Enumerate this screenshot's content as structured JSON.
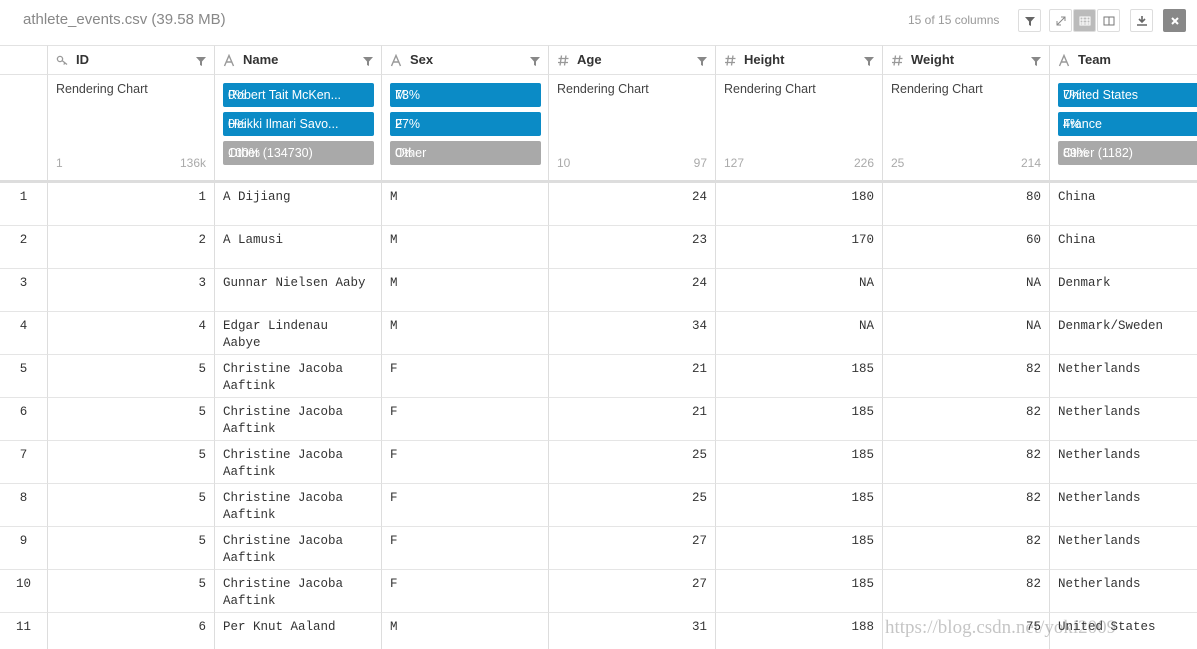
{
  "header": {
    "title": "athlete_events.csv (39.58 MB)",
    "columns_count": "15 of 15 columns"
  },
  "columns": [
    {
      "name": "ID",
      "icon": "key",
      "summary": {
        "chart": "Rendering Chart",
        "min": "1",
        "max": "136k"
      }
    },
    {
      "name": "Name",
      "icon": "text",
      "summary": {
        "top": [
          {
            "label": "Robert Tait McKen...",
            "pct": "0%"
          },
          {
            "label": "Heikki Ilmari Savo...",
            "pct": "0%"
          },
          {
            "label": "Other (134730)",
            "pct": "100%"
          }
        ]
      }
    },
    {
      "name": "Sex",
      "icon": "text",
      "summary": {
        "top": [
          {
            "label": "M",
            "pct": "73%"
          },
          {
            "label": "F",
            "pct": "27%"
          },
          {
            "label": "Other",
            "pct": "0%"
          }
        ]
      }
    },
    {
      "name": "Age",
      "icon": "number",
      "summary": {
        "chart": "Rendering Chart",
        "min": "10",
        "max": "97"
      }
    },
    {
      "name": "Height",
      "icon": "number",
      "summary": {
        "chart": "Rendering Chart",
        "min": "127",
        "max": "226"
      }
    },
    {
      "name": "Weight",
      "icon": "number",
      "summary": {
        "chart": "Rendering Chart",
        "min": "25",
        "max": "214"
      }
    },
    {
      "name": "Team",
      "icon": "text",
      "summary": {
        "top": [
          {
            "label": "United States",
            "pct": "7%"
          },
          {
            "label": "France",
            "pct": "4%"
          },
          {
            "label": "Other (1182)",
            "pct": "89%"
          }
        ]
      }
    }
  ],
  "rows": [
    [
      "1",
      "1",
      "A Dijiang",
      "M",
      "24",
      "180",
      "80",
      "China"
    ],
    [
      "2",
      "2",
      "A Lamusi",
      "M",
      "23",
      "170",
      "60",
      "China"
    ],
    [
      "3",
      "3",
      "Gunnar Nielsen Aaby",
      "M",
      "24",
      "NA",
      "NA",
      "Denmark"
    ],
    [
      "4",
      "4",
      "Edgar Lindenau Aabye",
      "M",
      "34",
      "NA",
      "NA",
      "Denmark/Sweden"
    ],
    [
      "5",
      "5",
      "Christine Jacoba Aaftink",
      "F",
      "21",
      "185",
      "82",
      "Netherlands"
    ],
    [
      "6",
      "5",
      "Christine Jacoba Aaftink",
      "F",
      "21",
      "185",
      "82",
      "Netherlands"
    ],
    [
      "7",
      "5",
      "Christine Jacoba Aaftink",
      "F",
      "25",
      "185",
      "82",
      "Netherlands"
    ],
    [
      "8",
      "5",
      "Christine Jacoba Aaftink",
      "F",
      "25",
      "185",
      "82",
      "Netherlands"
    ],
    [
      "9",
      "5",
      "Christine Jacoba Aaftink",
      "F",
      "27",
      "185",
      "82",
      "Netherlands"
    ],
    [
      "10",
      "5",
      "Christine Jacoba Aaftink",
      "F",
      "27",
      "185",
      "82",
      "Netherlands"
    ],
    [
      "11",
      "6",
      "Per Knut Aaland",
      "M",
      "31",
      "188",
      "75",
      "United States"
    ]
  ],
  "watermark": "https://blog.csdn.net/yoki2009"
}
